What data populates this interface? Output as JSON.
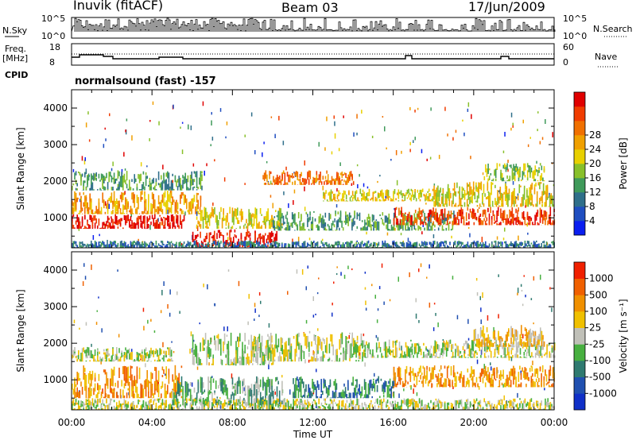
{
  "header": {
    "station": "Inuvik (fitACF)",
    "beam": "Beam 03",
    "date": "17/Jun/2009"
  },
  "meta_panel": {
    "nsky_label": "N.Sky",
    "nsky_ticks": [
      "10^5",
      "10^0"
    ],
    "nsearch_label": "N.Search",
    "nsearch_right_ticks": [
      "10^5",
      "10^0"
    ],
    "freq_label": "Freq.",
    "freq_unit": "[MHz]",
    "freq_ticks": [
      "18",
      "8"
    ],
    "nave_label": "Nave",
    "nave_ticks": [
      "60",
      "0"
    ],
    "cpid_label": "CPID",
    "cpid_text": "normalsound (fast) -157"
  },
  "chart_data": [
    {
      "type": "heatmap",
      "name": "power",
      "ylabel": "Slant Range [km]",
      "y_ticks": [
        1000,
        2000,
        3000,
        4000
      ],
      "ylim": [
        180,
        4500
      ],
      "x_ticks": [
        "00:00",
        "04:00",
        "08:00",
        "12:00",
        "16:00",
        "20:00",
        "00:00"
      ],
      "xlim_hours": [
        0,
        24
      ],
      "colorbar": {
        "label": "Power [dB]",
        "ticks": [
          "4",
          "8",
          "12",
          "16",
          "20",
          "24",
          "28"
        ],
        "colors": [
          "#0a1ef0",
          "#1f4ec0",
          "#2f6f8a",
          "#3f9a5a",
          "#88c02a",
          "#e8d000",
          "#f0a000",
          "#f07000",
          "#f03c00",
          "#e00000"
        ]
      },
      "bands": [
        {
          "t0": 0.0,
          "t1": 5.6,
          "r0": 700,
          "r1": 1100,
          "level": 9
        },
        {
          "t0": 0.0,
          "t1": 6.5,
          "r0": 1100,
          "r1": 1750,
          "level": 6
        },
        {
          "t0": 0.0,
          "t1": 6.5,
          "r0": 1750,
          "r1": 2300,
          "level": 3
        },
        {
          "t0": 6.0,
          "t1": 10.2,
          "r0": 200,
          "r1": 700,
          "level": 9
        },
        {
          "t0": 6.2,
          "t1": 10.5,
          "r0": 700,
          "r1": 1300,
          "level": 5
        },
        {
          "t0": 9.5,
          "t1": 14.0,
          "r0": 1900,
          "r1": 2300,
          "level": 7
        },
        {
          "t0": 10.0,
          "t1": 19.0,
          "r0": 650,
          "r1": 1200,
          "level": 3
        },
        {
          "t0": 12.5,
          "t1": 18.0,
          "r0": 1450,
          "r1": 1800,
          "level": 5
        },
        {
          "t0": 16.0,
          "t1": 24.0,
          "r0": 800,
          "r1": 1300,
          "level": 8
        },
        {
          "t0": 18.0,
          "t1": 24.0,
          "r0": 1300,
          "r1": 2000,
          "level": 5
        },
        {
          "t0": 20.5,
          "t1": 23.5,
          "r0": 2000,
          "r1": 2500,
          "level": 4
        },
        {
          "t0": 0.0,
          "t1": 24.0,
          "r0": 180,
          "r1": 380,
          "level": 2
        }
      ]
    },
    {
      "type": "heatmap",
      "name": "velocity",
      "ylabel": "Slant Range [km]",
      "y_ticks": [
        1000,
        2000,
        3000,
        4000
      ],
      "ylim": [
        180,
        4500
      ],
      "x_ticks": [
        "00:00",
        "04:00",
        "08:00",
        "12:00",
        "16:00",
        "20:00",
        "00:00"
      ],
      "xlim_hours": [
        0,
        24
      ],
      "xlabel": "Time UT",
      "colorbar": {
        "label": "Velocity [m s⁻¹]",
        "ticks": [
          "1000",
          "500",
          "100",
          "25",
          "-25",
          "-100",
          "-500",
          "-1000"
        ],
        "colors": [
          "#1030c8",
          "#2050b0",
          "#2f7a70",
          "#48b040",
          "#c0c0b8",
          "#f0c000",
          "#f09000",
          "#f06000",
          "#f02000"
        ]
      },
      "bands": [
        {
          "t0": 0.0,
          "t1": 5.5,
          "r0": 500,
          "r1": 1400,
          "level": 6
        },
        {
          "t0": 0.0,
          "t1": 5.0,
          "r0": 1500,
          "r1": 1900,
          "level": 4
        },
        {
          "t0": 5.0,
          "t1": 10.5,
          "r0": 300,
          "r1": 1100,
          "level": 3
        },
        {
          "t0": 6.0,
          "t1": 10.0,
          "r0": 1400,
          "r1": 2300,
          "level": 4
        },
        {
          "t0": 9.0,
          "t1": 14.5,
          "r0": 1500,
          "r1": 2300,
          "level": 4
        },
        {
          "t0": 11.0,
          "t1": 16.0,
          "r0": 500,
          "r1": 1100,
          "level": 2
        },
        {
          "t0": 14.0,
          "t1": 24.0,
          "r0": 1600,
          "r1": 2100,
          "level": 4
        },
        {
          "t0": 16.0,
          "t1": 24.0,
          "r0": 800,
          "r1": 1400,
          "level": 6
        },
        {
          "t0": 20.0,
          "t1": 23.5,
          "r0": 1900,
          "r1": 2500,
          "level": 5
        },
        {
          "t0": 0.0,
          "t1": 24.0,
          "r0": 180,
          "r1": 500,
          "level": 4
        }
      ]
    }
  ]
}
